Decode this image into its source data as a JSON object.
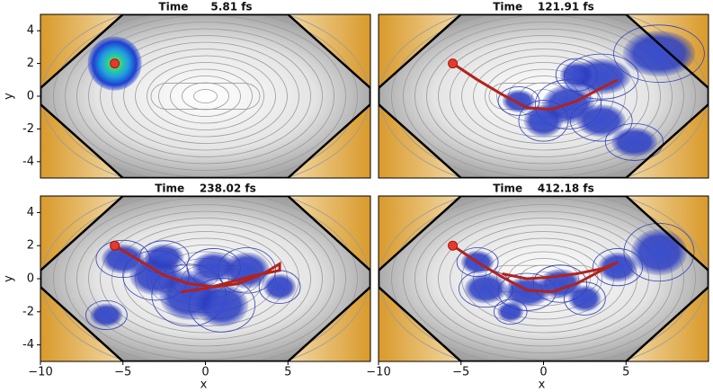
{
  "chart_data": [
    {
      "type": "line",
      "title": "Time      5.81 fs",
      "color": "#b3221b",
      "x": [
        -5.5
      ],
      "values": [
        2
      ],
      "xlim": [
        -10,
        10
      ],
      "ylim": [
        -5,
        5
      ],
      "yticks": [
        -4,
        -2,
        0,
        2,
        4
      ],
      "ylabel": "y"
    },
    {
      "type": "line",
      "title": "Time    121.91 fs",
      "color": "#b3221b",
      "x": [
        -5.5,
        -4,
        -2.5,
        -1,
        0.5,
        2,
        3.5,
        4.5
      ],
      "values": [
        2,
        1,
        0.1,
        -0.7,
        -0.8,
        -0.3,
        0.5,
        1
      ],
      "xlim": [
        -10,
        10
      ],
      "ylim": [
        -5,
        5
      ]
    },
    {
      "type": "line",
      "title": "Time    238.02 fs",
      "color": "#b3221b",
      "x": [
        -5.5,
        -4,
        -2.5,
        -1,
        0.5,
        2,
        3.5,
        4.5,
        4.5,
        3,
        1.5,
        0,
        -1.5
      ],
      "values": [
        2,
        1.1,
        0.2,
        -0.3,
        -0.5,
        -0.3,
        0.3,
        0.9,
        0.5,
        0.2,
        -0.2,
        -0.6,
        -0.8
      ],
      "xlim": [
        -10,
        10
      ],
      "ylim": [
        -5,
        5
      ],
      "xticks": [
        {
          "value": -10,
          "label": "−10"
        },
        {
          "value": -5,
          "label": "−5"
        },
        0,
        5
      ],
      "yticks": [
        -4,
        -2,
        0,
        2,
        4
      ],
      "xlabel": "x",
      "ylabel": "y"
    },
    {
      "type": "line",
      "title": "Time    412.18 fs",
      "color": "#b3221b",
      "x": [
        -5.5,
        -4,
        -2.5,
        -1,
        0.5,
        2,
        3.5,
        4.5,
        3.5,
        2,
        0.5,
        -1,
        -2.5
      ],
      "values": [
        2,
        1,
        0.1,
        -0.7,
        -0.8,
        -0.3,
        0.5,
        1,
        0.6,
        0.3,
        0.1,
        0,
        0.3
      ],
      "xlim": [
        -10,
        10
      ],
      "ylim": [
        -5,
        5
      ],
      "xticks": [
        {
          "value": -10,
          "label": "−10"
        },
        {
          "value": -5,
          "label": "−5"
        },
        0,
        5
      ],
      "xlabel": "x"
    }
  ]
}
